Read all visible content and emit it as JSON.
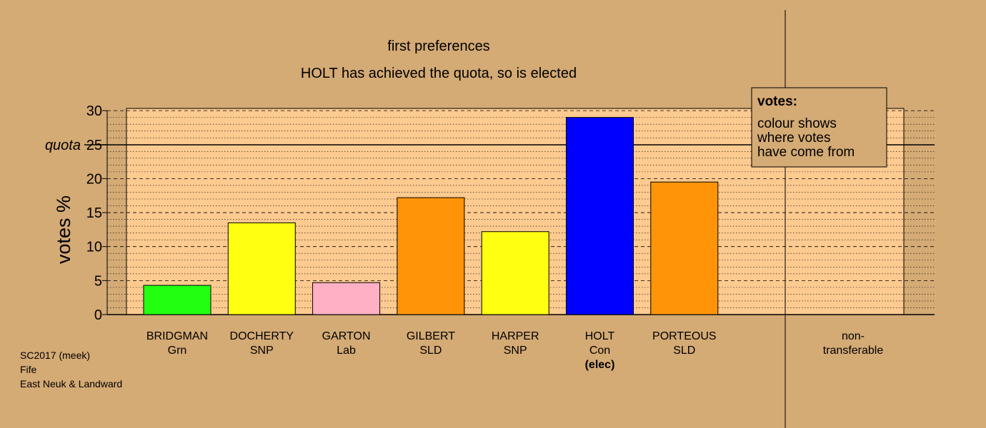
{
  "chart_data": {
    "type": "bar",
    "title": "first preferences",
    "subtitle": "HOLT has achieved the quota, so is elected",
    "ylabel": "votes %",
    "ylim": [
      0,
      30
    ],
    "yticks": [
      0,
      5,
      10,
      15,
      20,
      25,
      30
    ],
    "quota": 25,
    "quota_label": "quota",
    "grid": true,
    "candidates": [
      {
        "name": "BRIDGMAN",
        "party": "Grn",
        "value": 4.3,
        "color": "#22ff11",
        "note": ""
      },
      {
        "name": "DOCHERTY",
        "party": "SNP",
        "value": 13.5,
        "color": "#ffff11",
        "note": ""
      },
      {
        "name": "GARTON",
        "party": "Lab",
        "value": 4.7,
        "color": "#ffb0c4",
        "note": ""
      },
      {
        "name": "GILBERT",
        "party": "SLD",
        "value": 17.2,
        "color": "#ff9408",
        "note": ""
      },
      {
        "name": "HARPER",
        "party": "SNP",
        "value": 12.2,
        "color": "#ffff11",
        "note": ""
      },
      {
        "name": "HOLT",
        "party": "Con",
        "value": 29.0,
        "color": "#0000ff",
        "note": "(elec)"
      },
      {
        "name": "PORTEOUS",
        "party": "SLD",
        "value": 19.5,
        "color": "#ff9408",
        "note": ""
      }
    ],
    "nontransferable": {
      "label_line1": "non-",
      "label_line2": "transferable",
      "value": 0
    },
    "legend": {
      "title": "votes:",
      "lines": [
        "colour shows",
        "where votes",
        "have come from"
      ],
      "placement": "top-right"
    },
    "footer": [
      "SC2017 (meek)",
      "Fife",
      "East Neuk & Landward"
    ]
  },
  "colors": {
    "background": "#d4aa75",
    "plot_fill": "#fdca8f"
  }
}
